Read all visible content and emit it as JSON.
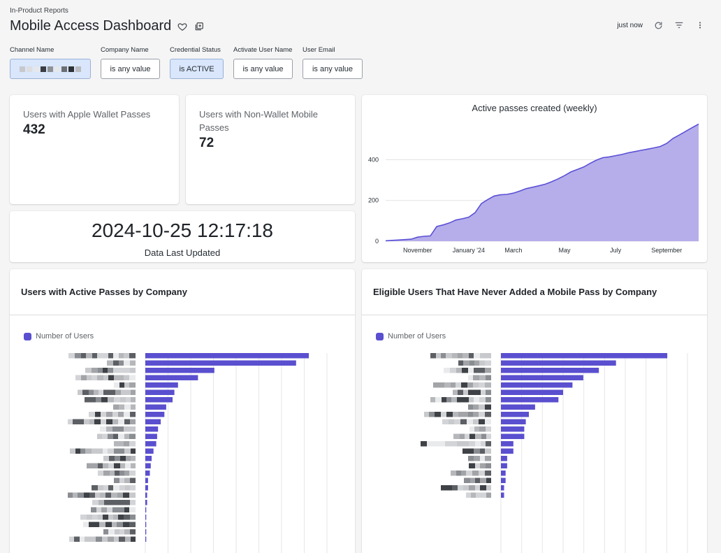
{
  "header": {
    "breadcrumb": "In-Product Reports",
    "title": "Mobile Access Dashboard",
    "last_refresh": "just now"
  },
  "icons": {
    "favorite": "heart-outline-icon",
    "copy": "copy-to-board-icon",
    "refresh": "refresh-icon",
    "filter": "filter-lines-icon",
    "more": "more-vertical-icon"
  },
  "filters": [
    {
      "label": "Channel Name",
      "value": "",
      "redacted": true,
      "active": true
    },
    {
      "label": "Company Name",
      "value": "is any value",
      "active": false
    },
    {
      "label": "Credential Status",
      "value": "is ACTIVE",
      "active": true
    },
    {
      "label": "Activate User Name",
      "value": "is any value",
      "active": false
    },
    {
      "label": "User Email",
      "value": "is any value",
      "active": false
    }
  ],
  "kpis": {
    "apple_wallet": {
      "label": "Users with Apple Wallet Passes",
      "value": "432"
    },
    "non_wallet": {
      "label": "Users with Non-Wallet Mobile Passes",
      "value": "72"
    },
    "last_updated": {
      "value": "2024-10-25 12:17:18",
      "label": "Data Last Updated"
    }
  },
  "colors": {
    "accent": "#5a4fcf",
    "area_fill": "#b6aeea",
    "area_line": "#5b50d6",
    "active_filter": "#d9e6fb"
  },
  "chart_data": [
    {
      "type": "area",
      "title": "Active passes created (weekly)",
      "xlabel": "",
      "ylabel": "",
      "x_ticks": [
        "November",
        "January '24",
        "March",
        "May",
        "July",
        "September"
      ],
      "y_ticks": [
        0,
        200,
        400
      ],
      "ylim": [
        0,
        580
      ],
      "grid": true,
      "values": [
        2,
        4,
        6,
        8,
        10,
        20,
        24,
        26,
        72,
        80,
        90,
        104,
        110,
        118,
        140,
        185,
        205,
        222,
        228,
        230,
        236,
        246,
        258,
        265,
        272,
        280,
        292,
        306,
        322,
        340,
        352,
        364,
        382,
        398,
        410,
        414,
        420,
        426,
        434,
        440,
        446,
        452,
        458,
        465,
        480,
        505,
        522,
        540,
        558,
        575
      ]
    },
    {
      "type": "bar",
      "orientation": "horizontal",
      "title": "Users with Active Passes by Company",
      "legend": "Number of Users",
      "legend_position": "top-left",
      "xlim": [
        0,
        200
      ],
      "values": [
        180,
        166,
        76,
        58,
        36,
        32,
        30,
        23,
        21,
        17,
        14,
        13,
        12,
        9,
        7,
        6,
        5,
        3,
        3,
        2,
        2,
        1,
        1,
        1,
        1,
        1
      ]
    },
    {
      "type": "bar",
      "orientation": "horizontal",
      "title": "Eligible Users That Have Never Added a Mobile Pass by Company",
      "legend": "Number of Users",
      "legend_position": "top-left",
      "xlim": [
        0,
        120
      ],
      "values": [
        107,
        74,
        63,
        53,
        46,
        40,
        37,
        22,
        18,
        16,
        15,
        15,
        8,
        8,
        4,
        4,
        3,
        3,
        2,
        2
      ]
    }
  ]
}
